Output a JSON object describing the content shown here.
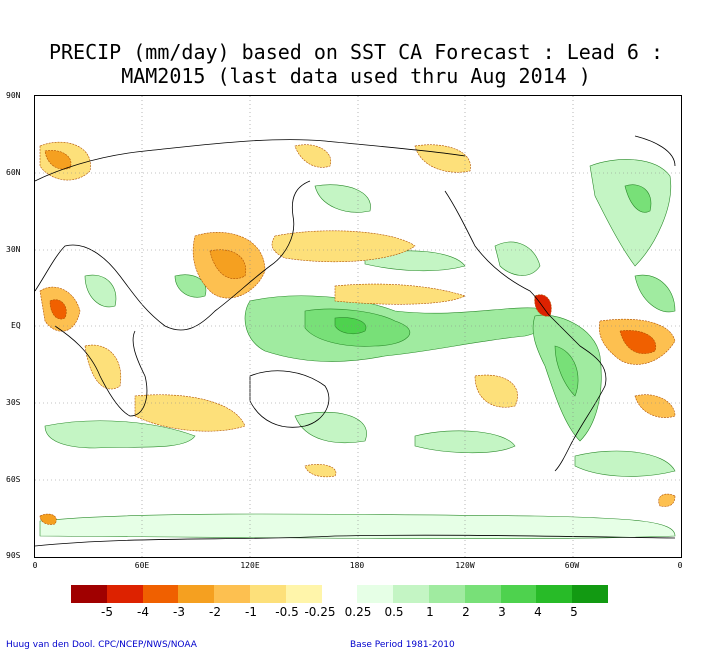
{
  "title": {
    "line1": "PRECIP (mm/day) based on SST CA Forecast : Lead 6 :",
    "line2": "MAM2015 (last data used thru Aug 2014 )"
  },
  "axes": {
    "lat_ticks": [
      "90N",
      "60N",
      "30N",
      "EQ",
      "30S",
      "60S",
      "90S"
    ],
    "lon_ticks": [
      "0",
      "60E",
      "120E",
      "180",
      "120W",
      "60W",
      "0"
    ]
  },
  "legend": {
    "labels": [
      "-5",
      "-4",
      "-3",
      "-2",
      "-1",
      "-0.5",
      "-0.25",
      "0.25",
      "0.5",
      "1",
      "2",
      "3",
      "4",
      "5"
    ],
    "colors": [
      "#a00000",
      "#dd2200",
      "#f06000",
      "#f5a020",
      "#fdc050",
      "#fde07a",
      "#fff5aa",
      "#ffffff",
      "#e6ffe6",
      "#c4f5c4",
      "#a0eba0",
      "#78e078",
      "#4ed24e",
      "#28bb28",
      "#129a12"
    ]
  },
  "footer": {
    "left": "Huug van den Dool. CPC/NCEP/NWS/NOAA",
    "right": "Base Period 1981-2010"
  },
  "chart_data": {
    "type": "heatmap",
    "title": "PRECIP (mm/day) based on SST CA Forecast : Lead 6 : MAM2015 (last data used thru Aug 2014 )",
    "xlabel": "",
    "ylabel": "",
    "xlim": [
      0,
      360
    ],
    "ylim": [
      -90,
      90
    ],
    "levels": [
      -5,
      -4,
      -3,
      -2,
      -1,
      -0.5,
      -0.25,
      0.25,
      0.5,
      1,
      2,
      3,
      4,
      5
    ],
    "grid": true
  }
}
